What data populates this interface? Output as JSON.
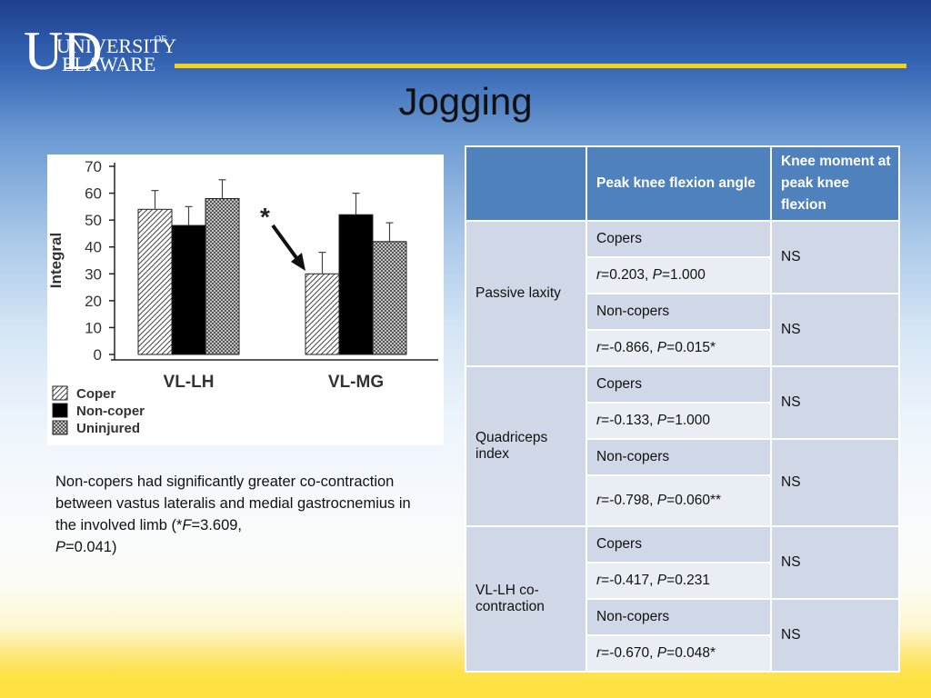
{
  "header": {
    "logo": {
      "line1": "UNIVERSITY",
      "of": "OF",
      "line2": "ELAWARE",
      "initials": "UD"
    },
    "title": "Jogging"
  },
  "chart_data": {
    "type": "bar",
    "categories": [
      "VL-LH",
      "VL-MG"
    ],
    "series": [
      {
        "name": "Coper",
        "values": [
          54,
          30
        ],
        "errors": [
          7,
          8
        ],
        "color": "hatched-gray"
      },
      {
        "name": "Non-coper",
        "values": [
          48,
          52
        ],
        "errors": [
          7,
          8
        ],
        "color": "#000000"
      },
      {
        "name": "Uninjured",
        "values": [
          58,
          42
        ],
        "errors": [
          7,
          7
        ],
        "color": "crosshatch-gray"
      }
    ],
    "ylabel": "Integral",
    "ylim": [
      0,
      70
    ],
    "yticks": [
      "0",
      "10",
      "20",
      "30",
      "40",
      "50",
      "60",
      "70"
    ],
    "annotation": "*",
    "legend_position": "bottom-left"
  },
  "note": {
    "text_before": "Non-copers had significantly greater co-contraction between vastus lateralis and medial gastrocnemius in the involved limb (*",
    "f_var": "F",
    "f_val": "=3.609,",
    "p_var": "P",
    "p_val": "=0.041)"
  },
  "table": {
    "headers": [
      "",
      "Peak knee flexion angle",
      "Knee moment at peak knee flexion"
    ],
    "groups": [
      {
        "label": "Passive laxity",
        "rows": [
          {
            "name": "Copers",
            "r": "=0.203,",
            "p": "=1.000",
            "moment": "NS"
          },
          {
            "name": "Non-copers",
            "r": "=-0.866,",
            "p": "=0.015*",
            "moment": "NS"
          }
        ]
      },
      {
        "label": "Quadriceps index",
        "rows": [
          {
            "name": "Copers",
            "r": "=-0.133,",
            "p": "=1.000",
            "moment": "NS"
          },
          {
            "name": "Non-copers",
            "r": "=-0.798,",
            "p": "=0.060**",
            "moment": "NS"
          }
        ]
      },
      {
        "label": "VL-LH co-contraction",
        "rows": [
          {
            "name": "Copers",
            "r": "=-0.417,",
            "p": "=0.231",
            "moment": "NS"
          },
          {
            "name": "Non-copers",
            "r": "=-0.670,",
            "p": "=0.048*",
            "moment": "NS"
          }
        ]
      }
    ],
    "var_r": "r",
    "var_p": "P"
  }
}
